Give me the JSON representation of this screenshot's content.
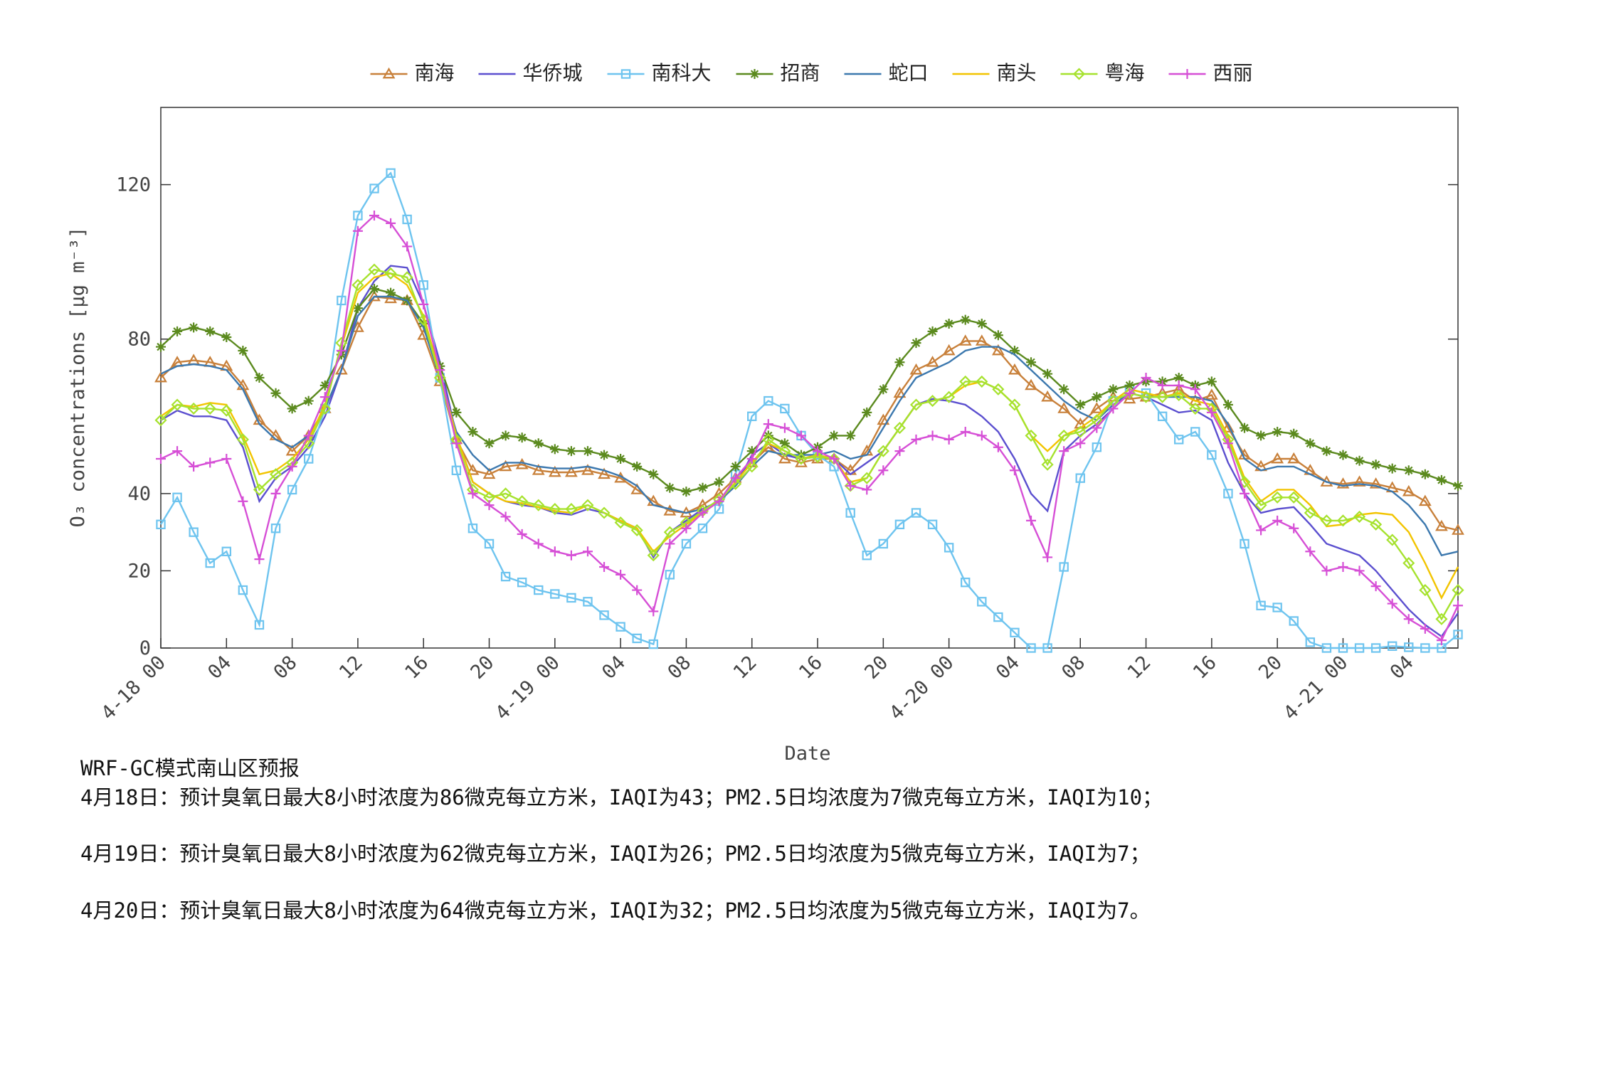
{
  "chart_data": {
    "type": "line",
    "y_label": "O₃ concentrations [μg m⁻³]",
    "x_label": "Date",
    "legend": "top",
    "categories": [
      "4-18 00",
      null,
      null,
      null,
      "04",
      null,
      null,
      null,
      "08",
      null,
      null,
      null,
      "12",
      null,
      null,
      null,
      "16",
      null,
      null,
      null,
      "20",
      null,
      null,
      null,
      "4-19 00",
      null,
      null,
      null,
      "04",
      null,
      null,
      null,
      "08",
      null,
      null,
      null,
      "12",
      null,
      null,
      null,
      "16",
      null,
      null,
      null,
      "20",
      null,
      null,
      null,
      "4-20 00",
      null,
      null,
      null,
      "04",
      null,
      null,
      null,
      "08",
      null,
      null,
      null,
      "12",
      null,
      null,
      null,
      "16",
      null,
      null,
      null,
      "20",
      null,
      null,
      null,
      "4-21 00",
      null,
      null,
      null,
      "04",
      null,
      null,
      null
    ],
    "ylim": [
      0,
      140
    ],
    "yticks": [
      0,
      20,
      40,
      80,
      120
    ],
    "series": [
      {
        "name": "南海",
        "color": "#c8803a",
        "marker": "triangle",
        "values": [
          70,
          74,
          74.5,
          74,
          73,
          68,
          59,
          55,
          51,
          55,
          62,
          72,
          83,
          91,
          90.5,
          90,
          81,
          69,
          54,
          46,
          45,
          47,
          47.5,
          46,
          45.5,
          45.5,
          46,
          45,
          44,
          41,
          38,
          35.5,
          35,
          37,
          40,
          44,
          48,
          52,
          49,
          48,
          49,
          49,
          46,
          51,
          59,
          66,
          72,
          74,
          77,
          79.5,
          79.5,
          77,
          72,
          68,
          65,
          62,
          58,
          62,
          65,
          64.5,
          65,
          66,
          67,
          64,
          65.5,
          57,
          50,
          47,
          49,
          49,
          46,
          43,
          42.5,
          43,
          42.5,
          41.5,
          40.5,
          38,
          31.5,
          30.5
        ]
      },
      {
        "name": "华侨城",
        "color": "#5b4fcf",
        "values": [
          59,
          61.5,
          60,
          60,
          59,
          52,
          38,
          44,
          47,
          52,
          60,
          72,
          88,
          95,
          99,
          98.5,
          89,
          74,
          55,
          43,
          40,
          38,
          37,
          36.5,
          35,
          34.5,
          36,
          35,
          33,
          31,
          23.5,
          30,
          33,
          36,
          38,
          42,
          50,
          53,
          50,
          49,
          50,
          49,
          45,
          48,
          51,
          57,
          63,
          64.5,
          64,
          63,
          60,
          56,
          49,
          40,
          35.5,
          51,
          55,
          58,
          62,
          66,
          65,
          63,
          61,
          61.5,
          59,
          48,
          40,
          35,
          36,
          36.5,
          32,
          27,
          25.5,
          24,
          20,
          15,
          10,
          6,
          3,
          9
        ]
      },
      {
        "name": "南科大",
        "color": "#6ec4ef",
        "marker": "square",
        "values": [
          32,
          39,
          30,
          22,
          25,
          15,
          6,
          31,
          41,
          49,
          62,
          90,
          112,
          119,
          123,
          111,
          94,
          70,
          46,
          31,
          27,
          18.5,
          17,
          15,
          14,
          13,
          12,
          8.5,
          5.5,
          2.5,
          1,
          19,
          27,
          31,
          36,
          45,
          60,
          64,
          62,
          55,
          50,
          47,
          35,
          24,
          27,
          32,
          35,
          32,
          26,
          17,
          12,
          8,
          4,
          0,
          0,
          21,
          44,
          52,
          64,
          67,
          66,
          60,
          54,
          56,
          50,
          40,
          27,
          11,
          10.5,
          7,
          1.5,
          0,
          0,
          0,
          0,
          0.5,
          0.2,
          0,
          0,
          3.5
        ]
      },
      {
        "name": "招商",
        "color": "#5b8a1e",
        "marker": "star",
        "values": [
          78,
          82,
          83,
          82,
          80.5,
          77,
          70,
          66,
          62,
          64,
          68,
          76,
          88,
          93,
          92,
          90,
          84,
          73,
          61,
          56,
          53,
          55,
          54.5,
          53,
          51.5,
          51,
          51,
          50,
          49,
          47,
          45,
          41.5,
          40.5,
          41.5,
          43,
          47,
          51,
          55,
          53,
          50,
          52,
          55,
          55,
          61,
          67,
          74,
          79,
          82,
          84,
          85,
          84,
          81,
          77,
          74,
          71,
          67,
          63,
          65,
          67,
          68,
          69,
          69,
          70,
          68,
          69,
          63,
          57,
          55,
          56,
          55.5,
          53,
          51,
          50,
          48.5,
          47.5,
          46.5,
          46,
          45,
          43.5,
          42
        ]
      },
      {
        "name": "蛇口",
        "color": "#3c78ae",
        "values": [
          71,
          73,
          73.5,
          73,
          72,
          67,
          58,
          54,
          52,
          55,
          62,
          72,
          86,
          91,
          91,
          90,
          83,
          70,
          56,
          50,
          46,
          48,
          48,
          47,
          46.5,
          46.5,
          47,
          46,
          44.5,
          42,
          37,
          36,
          35,
          36,
          38,
          42,
          47,
          51,
          50,
          50,
          50,
          51,
          49,
          50,
          57,
          64,
          70,
          72,
          74,
          77,
          78,
          78,
          76,
          72,
          68,
          64,
          61,
          59,
          63,
          66,
          65,
          65,
          65,
          65,
          64,
          58,
          49,
          46,
          47,
          47,
          45,
          43,
          42,
          42.5,
          42,
          40.5,
          37,
          32,
          24,
          25
        ]
      },
      {
        "name": "南头",
        "color": "#f2c400",
        "values": [
          60,
          63,
          62.5,
          63.5,
          63,
          55,
          45,
          46,
          49,
          54,
          63,
          78,
          92,
          96,
          97,
          94,
          86,
          71,
          55,
          43,
          40,
          38,
          37.5,
          36.5,
          35.5,
          35,
          37,
          35,
          33,
          31,
          25,
          29,
          32,
          35,
          38,
          43,
          48,
          53,
          51,
          49,
          50,
          49,
          43,
          44,
          51,
          57,
          63,
          64,
          65,
          68,
          69,
          67,
          63,
          55,
          51,
          55,
          57,
          60,
          64,
          67,
          66,
          65,
          66,
          64,
          63,
          55,
          44,
          38,
          41,
          41,
          37,
          31.5,
          32,
          34.5,
          35,
          34.5,
          30,
          22,
          13,
          21
        ]
      },
      {
        "name": "粤海",
        "color": "#a6e22e",
        "marker": "diamond",
        "values": [
          59,
          63,
          62,
          62,
          61.5,
          54,
          41,
          45,
          48,
          53,
          62,
          79,
          94,
          98,
          97,
          96,
          85,
          70,
          54,
          41,
          39,
          40,
          38,
          37,
          36,
          36,
          37,
          35,
          32.5,
          30.5,
          24,
          30,
          32.5,
          35.5,
          38.5,
          42.5,
          47,
          54,
          51,
          49,
          49.5,
          49,
          42,
          44,
          51,
          57,
          63,
          64,
          65,
          69,
          69,
          67,
          63,
          55,
          47.5,
          55,
          56,
          59,
          64,
          66,
          65,
          65,
          65.5,
          62,
          62,
          54,
          43,
          37,
          39,
          39,
          35,
          33,
          33,
          34,
          32,
          28,
          22,
          15,
          7.5,
          15
        ]
      },
      {
        "name": "西丽",
        "color": "#d64fd6",
        "marker": "plus",
        "values": [
          49,
          51,
          47,
          48,
          49,
          38,
          23,
          40,
          47,
          55,
          65,
          77,
          108,
          112,
          110,
          104,
          89,
          72,
          53,
          40,
          37,
          34,
          29.5,
          27,
          25,
          24,
          25,
          21,
          19,
          15,
          9.5,
          27,
          31,
          35,
          38,
          44,
          49,
          58,
          57,
          55,
          51,
          49,
          42,
          41,
          46,
          51,
          54,
          55,
          54,
          56,
          55,
          52,
          46,
          33,
          23.5,
          51,
          53,
          57,
          62,
          66,
          70,
          68,
          68,
          67,
          61,
          53,
          40,
          30.5,
          33,
          31,
          25,
          20,
          21,
          20,
          16,
          11.5,
          7.5,
          5,
          2,
          11
        ]
      }
    ]
  },
  "forecast": {
    "title": "WRF-GC模式南山区预报",
    "lines": [
      "4月18日：预计臭氧日最大8小时浓度为86微克每立方米，IAQI为43；PM2.5日均浓度为7微克每立方米，IAQI为10；",
      "4月19日：预计臭氧日最大8小时浓度为62微克每立方米，IAQI为26；PM2.5日均浓度为5微克每立方米，IAQI为7；",
      "4月20日：预计臭氧日最大8小时浓度为64微克每立方米，IAQI为32；PM2.5日均浓度为5微克每立方米，IAQI为7。"
    ]
  }
}
